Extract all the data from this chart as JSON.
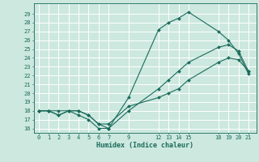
{
  "xlabel": "Humidex (Indice chaleur)",
  "bg_color": "#cce8df",
  "grid_color": "#ffffff",
  "line_color": "#1a6b5a",
  "xlim": [
    -0.5,
    21.8
  ],
  "ylim": [
    15.5,
    30.2
  ],
  "xticks": [
    0,
    1,
    2,
    3,
    4,
    5,
    6,
    7,
    9,
    12,
    13,
    14,
    15,
    18,
    19,
    20,
    21
  ],
  "yticks": [
    16,
    17,
    18,
    19,
    20,
    21,
    22,
    23,
    24,
    25,
    26,
    27,
    28,
    29
  ],
  "lines": [
    {
      "x": [
        0,
        1,
        2,
        3,
        4,
        5,
        6,
        7,
        9,
        12,
        13,
        14,
        15,
        18,
        19,
        20,
        21
      ],
      "y": [
        18,
        18,
        18,
        18,
        17.5,
        17,
        16,
        16,
        19.5,
        27.2,
        28.0,
        28.5,
        29.2,
        27.0,
        26.0,
        24.5,
        22.2
      ]
    },
    {
      "x": [
        0,
        1,
        2,
        3,
        4,
        5,
        6,
        7,
        9,
        12,
        13,
        14,
        15,
        18,
        19,
        20,
        21
      ],
      "y": [
        18,
        18,
        17.5,
        18,
        18,
        17.5,
        16.5,
        16,
        18.0,
        20.5,
        21.5,
        22.5,
        23.5,
        25.2,
        25.5,
        24.8,
        22.5
      ]
    },
    {
      "x": [
        0,
        1,
        2,
        3,
        4,
        5,
        6,
        7,
        9,
        12,
        13,
        14,
        15,
        18,
        19,
        20,
        21
      ],
      "y": [
        18,
        18,
        17.5,
        18,
        18,
        17.5,
        16.5,
        16.5,
        18.5,
        19.5,
        20.0,
        20.5,
        21.5,
        23.5,
        24.0,
        23.8,
        22.5
      ]
    }
  ]
}
